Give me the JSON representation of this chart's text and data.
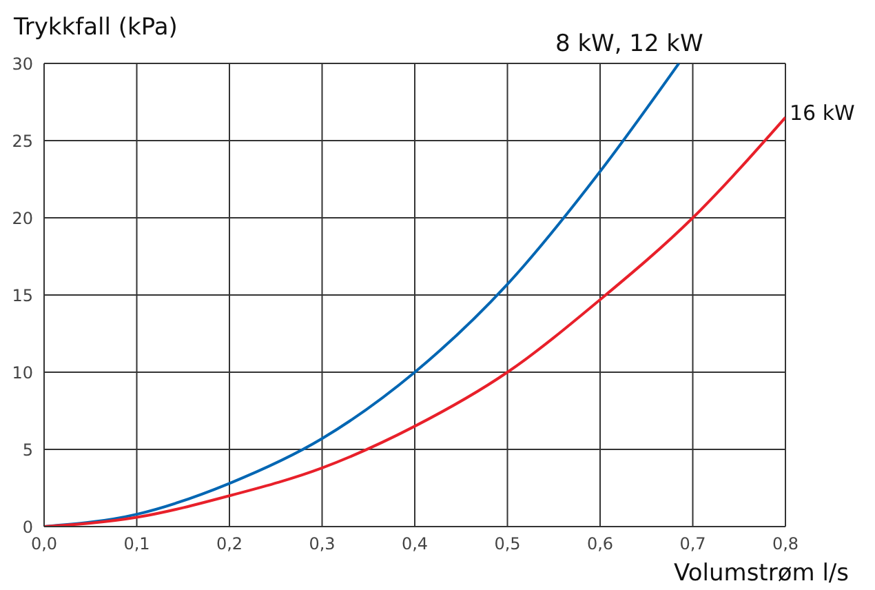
{
  "chart_data": {
    "type": "line",
    "xlabel": "Volumstrøm l/s",
    "ylabel": "Trykkfall (kPa)",
    "xlim": [
      0,
      0.8
    ],
    "ylim": [
      0,
      30
    ],
    "xticks": [
      {
        "value": 0,
        "label": "0,0"
      },
      {
        "value": 0.1,
        "label": "0,1"
      },
      {
        "value": 0.2,
        "label": "0,2"
      },
      {
        "value": 0.3,
        "label": "0,3"
      },
      {
        "value": 0.4,
        "label": "0,4"
      },
      {
        "value": 0.5,
        "label": "0,5"
      },
      {
        "value": 0.6,
        "label": "0,6"
      },
      {
        "value": 0.7,
        "label": "0,7"
      },
      {
        "value": 0.8,
        "label": "0,8"
      }
    ],
    "yticks": [
      0,
      5,
      10,
      15,
      20,
      25,
      30
    ],
    "grid": true,
    "marker": "none",
    "line_style": "solid",
    "series": [
      {
        "name": "8 kW, 12 kW",
        "color": "#0066b3",
        "x": [
          0,
          0.1,
          0.2,
          0.3,
          0.4,
          0.5,
          0.6,
          0.685
        ],
        "values": [
          0,
          0.8,
          2.8,
          5.7,
          10,
          15.7,
          23,
          30
        ]
      },
      {
        "name": "16 kW",
        "color": "#e8202a",
        "x": [
          0,
          0.1,
          0.2,
          0.3,
          0.4,
          0.5,
          0.6,
          0.7,
          0.8
        ],
        "values": [
          0,
          0.6,
          2,
          3.8,
          6.5,
          10,
          14.7,
          20,
          26.5
        ]
      }
    ]
  }
}
